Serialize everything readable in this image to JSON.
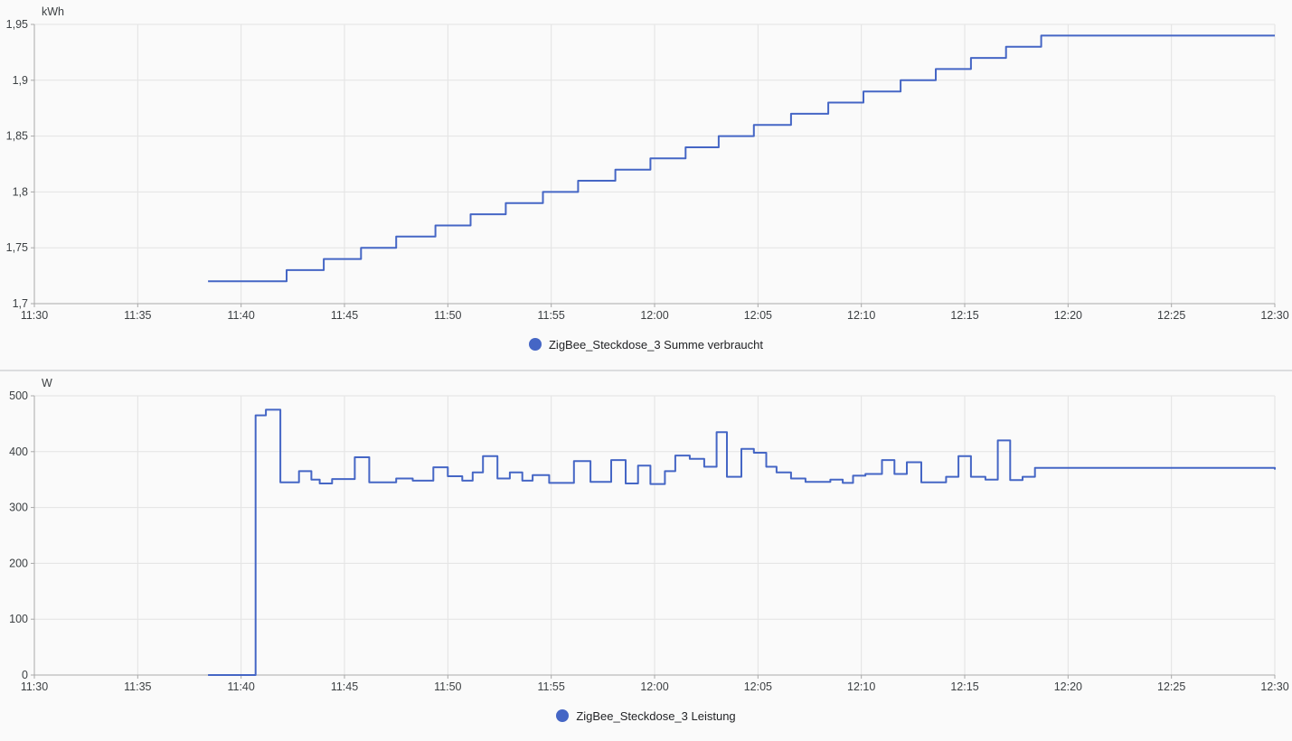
{
  "page": {
    "background": "#fafafa",
    "x_axis_start_time": "11:30",
    "x_axis_end_time": "12:30"
  },
  "chart_data": [
    {
      "type": "line",
      "line_style": "step-after",
      "series_name": "ZigBee_Steckdose_3 Summe verbraucht",
      "unit": "kWh",
      "color": "#4566c5",
      "legend_position": "bottom-center",
      "grid": true,
      "x_range_minutes": [
        0,
        60
      ],
      "x_tick_minutes": [
        0,
        5,
        10,
        15,
        20,
        25,
        30,
        35,
        40,
        45,
        50,
        55,
        60
      ],
      "x_ticks": [
        "11:30",
        "11:35",
        "11:40",
        "11:45",
        "11:50",
        "11:55",
        "12:00",
        "12:05",
        "12:10",
        "12:15",
        "12:20",
        "12:25",
        "12:30"
      ],
      "ylim": [
        1.7,
        1.95
      ],
      "y_tick_values": [
        1.7,
        1.75,
        1.8,
        1.85,
        1.9,
        1.95
      ],
      "y_tick_labels": [
        "1,7",
        "1,75",
        "1,8",
        "1,85",
        "1,9",
        "1,95"
      ],
      "points_comment": "[minutes after 11:30, kWh]; value holds until next point (step-after)",
      "points": [
        [
          8.4,
          1.72
        ],
        [
          12.2,
          1.73
        ],
        [
          14.0,
          1.74
        ],
        [
          15.8,
          1.75
        ],
        [
          17.5,
          1.76
        ],
        [
          19.4,
          1.77
        ],
        [
          21.1,
          1.78
        ],
        [
          22.8,
          1.79
        ],
        [
          24.6,
          1.8
        ],
        [
          26.3,
          1.81
        ],
        [
          28.1,
          1.82
        ],
        [
          29.8,
          1.83
        ],
        [
          31.5,
          1.84
        ],
        [
          33.1,
          1.85
        ],
        [
          34.8,
          1.86
        ],
        [
          36.6,
          1.87
        ],
        [
          38.4,
          1.88
        ],
        [
          40.1,
          1.89
        ],
        [
          41.9,
          1.9
        ],
        [
          43.6,
          1.91
        ],
        [
          45.3,
          1.92
        ],
        [
          47.0,
          1.93
        ],
        [
          48.7,
          1.94
        ],
        [
          60.0,
          1.94
        ]
      ]
    },
    {
      "type": "line",
      "line_style": "step-after",
      "series_name": "ZigBee_Steckdose_3 Leistung",
      "unit": "W",
      "color": "#4566c5",
      "legend_position": "bottom-center",
      "grid": true,
      "x_range_minutes": [
        0,
        60
      ],
      "x_tick_minutes": [
        0,
        5,
        10,
        15,
        20,
        25,
        30,
        35,
        40,
        45,
        50,
        55,
        60
      ],
      "x_ticks": [
        "11:30",
        "11:35",
        "11:40",
        "11:45",
        "11:50",
        "11:55",
        "12:00",
        "12:05",
        "12:10",
        "12:15",
        "12:20",
        "12:25",
        "12:30"
      ],
      "ylim": [
        0,
        500
      ],
      "y_tick_values": [
        0,
        100,
        200,
        300,
        400,
        500
      ],
      "y_tick_labels": [
        "0",
        "100",
        "200",
        "300",
        "400",
        "500"
      ],
      "points_comment": "[minutes after 11:30, Watt]; value holds until next point (step-after)",
      "points": [
        [
          8.4,
          0
        ],
        [
          10.7,
          465
        ],
        [
          11.2,
          475
        ],
        [
          11.9,
          345
        ],
        [
          12.8,
          365
        ],
        [
          13.4,
          350
        ],
        [
          13.8,
          343
        ],
        [
          14.4,
          351
        ],
        [
          15.5,
          390
        ],
        [
          16.2,
          345
        ],
        [
          17.5,
          352
        ],
        [
          18.3,
          348
        ],
        [
          19.3,
          372
        ],
        [
          20.0,
          356
        ],
        [
          20.7,
          348
        ],
        [
          21.2,
          363
        ],
        [
          21.7,
          392
        ],
        [
          22.4,
          352
        ],
        [
          23.0,
          363
        ],
        [
          23.6,
          348
        ],
        [
          24.1,
          358
        ],
        [
          24.9,
          344
        ],
        [
          26.1,
          383
        ],
        [
          26.9,
          346
        ],
        [
          27.9,
          385
        ],
        [
          28.6,
          343
        ],
        [
          29.2,
          375
        ],
        [
          29.8,
          342
        ],
        [
          30.5,
          365
        ],
        [
          31.0,
          393
        ],
        [
          31.7,
          387
        ],
        [
          32.4,
          373
        ],
        [
          33.0,
          435
        ],
        [
          33.5,
          355
        ],
        [
          34.2,
          405
        ],
        [
          34.8,
          398
        ],
        [
          35.4,
          373
        ],
        [
          35.9,
          363
        ],
        [
          36.6,
          352
        ],
        [
          37.3,
          346
        ],
        [
          38.5,
          350
        ],
        [
          39.1,
          344
        ],
        [
          39.6,
          357
        ],
        [
          40.2,
          360
        ],
        [
          41.0,
          385
        ],
        [
          41.6,
          360
        ],
        [
          42.2,
          381
        ],
        [
          42.9,
          345
        ],
        [
          44.1,
          355
        ],
        [
          44.7,
          392
        ],
        [
          45.3,
          355
        ],
        [
          46.0,
          350
        ],
        [
          46.6,
          420
        ],
        [
          47.2,
          349
        ],
        [
          47.8,
          355
        ],
        [
          48.4,
          371
        ],
        [
          60.0,
          368
        ]
      ]
    }
  ]
}
